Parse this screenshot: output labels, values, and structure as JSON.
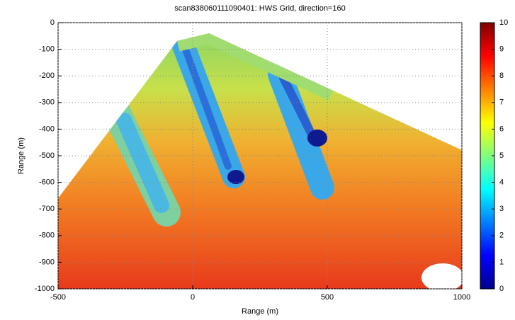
{
  "chart_data": {
    "type": "heatmap",
    "title": "scan838060111090401: HWS Grid, direction=160",
    "xlabel": "Range (m)",
    "ylabel": "Range (m)",
    "xlim": [
      -500,
      1000
    ],
    "xticks": [
      -500,
      0,
      500,
      1000
    ],
    "ylim": [
      -1000,
      0
    ],
    "yticks": [
      0,
      -100,
      -200,
      -300,
      -400,
      -500,
      -600,
      -700,
      -800,
      -900,
      -1000
    ],
    "grid": true,
    "colormap": "jet",
    "colorbar": {
      "lim": [
        0,
        10
      ],
      "ticks": [
        0,
        1,
        2,
        3,
        4,
        5,
        6,
        7,
        8,
        9,
        10
      ]
    }
  }
}
